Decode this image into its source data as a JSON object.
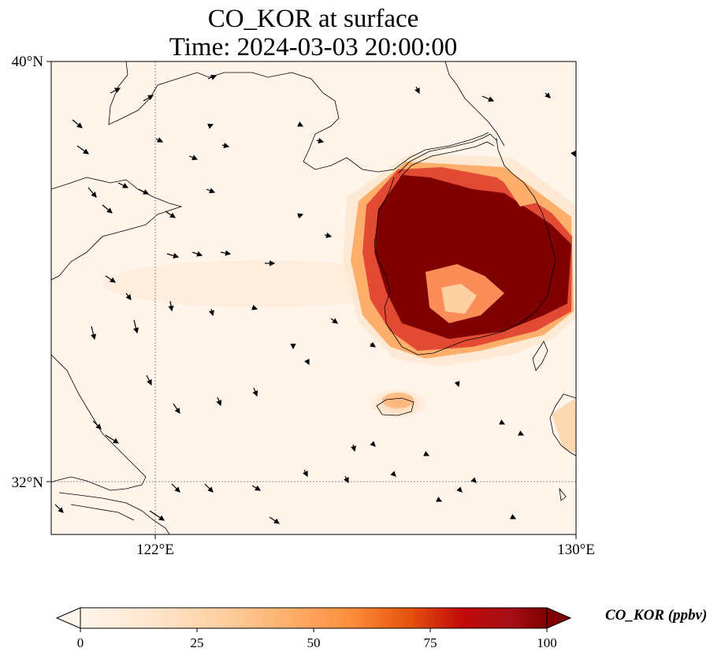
{
  "title": {
    "line1": "CO_KOR at surface",
    "line2": "Time: 2024-03-03 20:00:00"
  },
  "map": {
    "extent": {
      "lon": [
        120,
        130
      ],
      "lat": [
        31,
        40
      ]
    },
    "lat_labels": [
      "40°N",
      "32°N"
    ],
    "lon_labels": [
      "122°E",
      "130°E"
    ],
    "gridlines": {
      "lon": 122,
      "lat": 32
    },
    "plume_color": "#7f0000",
    "background_color": "#fff5eb"
  },
  "colorbar": {
    "label": "CO_KOR (ppbv)",
    "ticks": [
      "0",
      "25",
      "50",
      "75",
      "100"
    ],
    "range": [
      0,
      100
    ],
    "colors": [
      "#fff5eb",
      "#fee6ce",
      "#fdd0a2",
      "#fdae6b",
      "#fd8d3c",
      "#f16913",
      "#d94801",
      "#a50f15",
      "#7f0000"
    ]
  }
}
